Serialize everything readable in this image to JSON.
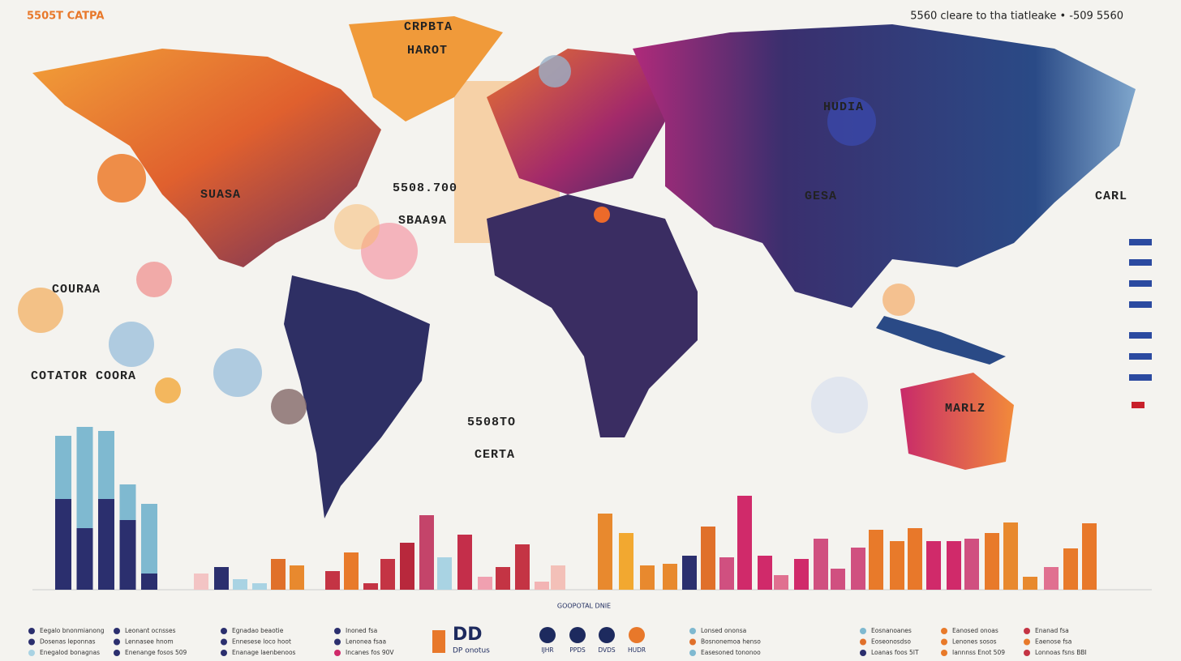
{
  "header": {
    "top_left": "5505T CATPA",
    "top_right": "5560 cleare to tha tiatleake • -509 5560"
  },
  "map_labels": [
    "CRPBTA",
    "HAROT",
    "HUDIA",
    "SUASA",
    "5508.700",
    "SBAA9A",
    "GESA",
    "CARL",
    "COURAA",
    "COTATOR COORA",
    "5508TO",
    "CERTA",
    "MARLZ"
  ],
  "left_chart": {
    "type": "bar",
    "ylim": [
      0,
      210
    ],
    "series": [
      {
        "color": "#2b2f6e",
        "values": [
          112,
          76,
          112,
          86,
          20
        ]
      },
      {
        "color": "#7fb9d0",
        "values": [
          78,
          125,
          84,
          44,
          86
        ]
      }
    ]
  },
  "strip_chart": {
    "type": "bar",
    "ylim": [
      0,
      120
    ],
    "title": "GOOPOTAL DNIE",
    "values": [
      20,
      28,
      13,
      8,
      38,
      30,
      23,
      46,
      8,
      38,
      58,
      92,
      40,
      68,
      16,
      28,
      56,
      10,
      30,
      94,
      70,
      30,
      32,
      42,
      78,
      40,
      116,
      42,
      18,
      38,
      63,
      26,
      52,
      74,
      60,
      76,
      60,
      60,
      63,
      70,
      83,
      16,
      28,
      51,
      82
    ],
    "colors": [
      "#f3c4c4",
      "#2b2f6e",
      "#a9d3e3",
      "#a9d3e3",
      "#e0702a",
      "#e8892e",
      "#c43444",
      "#e87a2a",
      "#c43444",
      "#c43444",
      "#b8283c",
      "#c4446a",
      "#a9d3e3",
      "#c42e4a",
      "#f0a0b0",
      "#c43444",
      "#c43444",
      "#f3b4b4",
      "#f3c0b8",
      "#e8892e",
      "#f2a830",
      "#e8892e",
      "#e8892e",
      "#2b2f6e",
      "#e0702a",
      "#d05080",
      "#d02a6a",
      "#d02a6a",
      "#e07090",
      "#d02a6a",
      "#d05080",
      "#d05080",
      "#d05080",
      "#e87a2a",
      "#e87a2a",
      "#e8782a",
      "#d02a6a",
      "#d02a6a",
      "#d05080",
      "#e87a2a",
      "#e8892e",
      "#e8892e",
      "#e07090",
      "#e87a2a",
      "#e8782a"
    ]
  },
  "legend": {
    "items": [
      {
        "label": "Eegalo bnonmianong",
        "color": "#2b2f6e"
      },
      {
        "label": "Dosenas leponnas",
        "color": "#2b2f6e"
      },
      {
        "label": "Enegalod bonagnas",
        "color": "#a9d3e3"
      },
      {
        "label": "Leonant ocnsses",
        "color": "#2b2f6e"
      },
      {
        "label": "Lennasee hnom",
        "color": "#2b2f6e"
      },
      {
        "label": "Enenange fosos 509",
        "color": "#2b2f6e"
      },
      {
        "label": "Egnadao beaotie",
        "color": "#2b2f6e"
      },
      {
        "label": "Ennesese loco hoot",
        "color": "#2b2f6e"
      },
      {
        "label": "Enanage laenbenoos",
        "color": "#2b2f6e"
      },
      {
        "label": "Inoned fsa",
        "color": "#2b2f6e"
      },
      {
        "label": "Lenonea fsaa",
        "color": "#2b2f6e"
      },
      {
        "label": "Incanes fos 90V",
        "color": "#d02a6a"
      },
      {
        "label": "Lonsed ononsa",
        "color": "#7fb9d0"
      },
      {
        "label": "Bosnonemoa henso",
        "color": "#e0702a"
      },
      {
        "label": "Easesoned tononoo",
        "color": "#7fb9d0"
      },
      {
        "label": "Eosnanoanes",
        "color": "#7fb9d0"
      },
      {
        "label": "Eoseonosdso",
        "color": "#e0702a"
      },
      {
        "label": "Loanas foos 5IT",
        "color": "#2b2f6e"
      },
      {
        "label": "Eanosed onoas",
        "color": "#e87a2a"
      },
      {
        "label": "Lenones sosos",
        "color": "#e87a2a"
      },
      {
        "label": "Iannnss Enot 509",
        "color": "#e87a2a"
      },
      {
        "label": "Enanad fsa",
        "color": "#c43444"
      },
      {
        "label": "Eaenose fsa",
        "color": "#e87a2a"
      },
      {
        "label": "Lonnoas fsns BBI",
        "color": "#c43444"
      }
    ],
    "big": "DD",
    "big_sub": "DP onotus",
    "icons": [
      "IJHR",
      "PPDS",
      "DVDS",
      "HUDR"
    ]
  }
}
